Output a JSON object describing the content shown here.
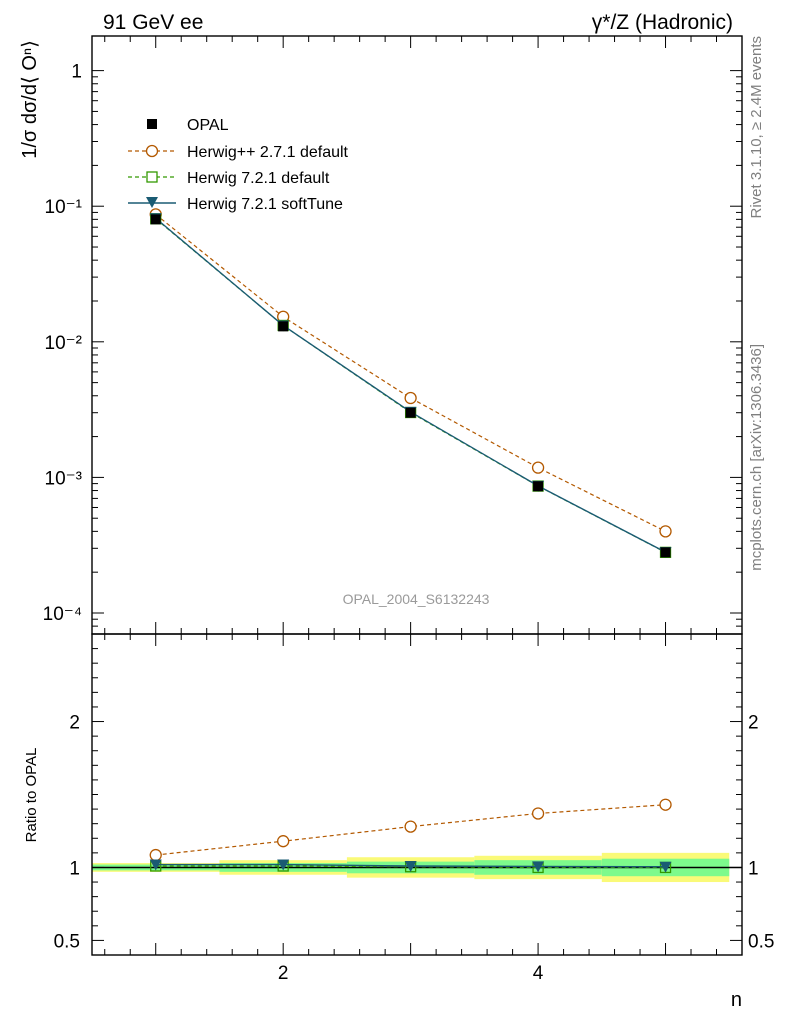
{
  "header": {
    "left": "91 GeV ee",
    "right": "γ*/Z (Hadronic)"
  },
  "side": {
    "rivet": "Rivet 3.1.10, ≥ 2.4M events",
    "mcplots": "mcplots.cern.ch [arXiv:1306.3436]"
  },
  "chart_data": [
    {
      "type": "line",
      "panel": "main",
      "ylabel": "1/σ dσ/d⟨ Oⁿ⟩",
      "ylog": true,
      "ylim": [
        7e-05,
        1.8
      ],
      "xlim": [
        0.5,
        5.6
      ],
      "y_ticklabels": [
        "1",
        "10⁻¹",
        "10⁻²",
        "10⁻³",
        "10⁻⁴"
      ],
      "annotation": "OPAL_2004_S6132243",
      "x": [
        1,
        2,
        3,
        4,
        5
      ],
      "series": [
        {
          "name": "OPAL",
          "color": "#000000",
          "marker": "filled-square",
          "values": [
            0.08,
            0.013,
            0.003,
            0.00086,
            0.00028
          ]
        },
        {
          "name": "Herwig++ 2.7.1 default",
          "color": "#b35900",
          "marker": "open-circle",
          "dash": "dashed",
          "values": [
            0.087,
            0.0153,
            0.00385,
            0.00118,
            0.0004
          ]
        },
        {
          "name": "Herwig 7.2.1 default",
          "color": "#339900",
          "marker": "open-square",
          "dash": "dashed",
          "values": [
            0.0808,
            0.0132,
            0.00301,
            0.000863,
            0.00028
          ]
        },
        {
          "name": "Herwig 7.2.1 softTune",
          "color": "#1a5b73",
          "marker": "filled-triangle-down",
          "dash": "solid",
          "values": [
            0.0815,
            0.0132,
            0.00304,
            0.000866,
            0.000281
          ]
        }
      ]
    },
    {
      "type": "line",
      "panel": "ratio",
      "ylabel": "Ratio to OPAL",
      "xlabel": "n",
      "ylim": [
        0.4,
        2.6
      ],
      "y_ticklabels": [
        "0.5",
        "1",
        "2"
      ],
      "x_ticklabels": [
        "2",
        "4"
      ],
      "x": [
        1,
        2,
        3,
        4,
        5
      ],
      "bands": {
        "inner_color": "#7dfa8c",
        "outer_color": "#fafa78",
        "inner": [
          0.02,
          0.03,
          0.04,
          0.05,
          0.06
        ],
        "outer": [
          0.03,
          0.05,
          0.07,
          0.08,
          0.1
        ]
      },
      "series": [
        {
          "name": "Herwig++ 2.7.1 default",
          "values": [
            1.085,
            1.18,
            1.28,
            1.37,
            1.43
          ]
        },
        {
          "name": "Herwig 7.2.1 default",
          "values": [
            1.01,
            1.01,
            1.005,
            1.0,
            1.0
          ]
        },
        {
          "name": "Herwig 7.2.1 softTune",
          "values": [
            1.02,
            1.02,
            1.01,
            1.007,
            1.005
          ]
        }
      ]
    }
  ]
}
